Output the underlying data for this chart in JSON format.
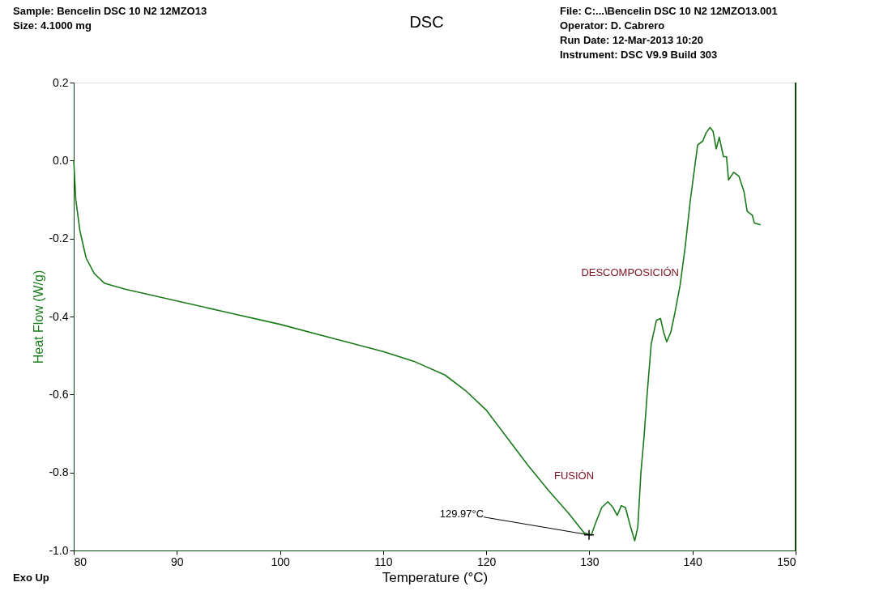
{
  "chart_data": {
    "type": "line",
    "title": "DSC",
    "xlabel": "Temperature (°C)",
    "ylabel": "Heat Flow (W/g)",
    "xlim": [
      80,
      150
    ],
    "xticks": [
      80,
      90,
      100,
      110,
      120,
      130,
      140,
      150
    ],
    "ylim": [
      -1.0,
      0.2
    ],
    "yticks": [
      {
        "value": -1.0,
        "label": "-1.0"
      },
      {
        "value": -0.8,
        "label": "-0.8"
      },
      {
        "value": -0.6,
        "label": "-0.6"
      },
      {
        "value": -0.4,
        "label": "-0.4"
      },
      {
        "value": -0.2,
        "label": "-0.2"
      },
      {
        "value": 0.0,
        "label": "0.0"
      },
      {
        "value": 0.2,
        "label": "0.2"
      }
    ],
    "grid": false,
    "marker": "none",
    "line_style": "solid",
    "annotations": [
      "Sample: Bencelin DSC 10 N2 12MZO13",
      "Size: 4.1000 mg",
      "File: C:...\\Bencelin DSC 10 N2 12MZO13.001",
      "Operator: D. Cabrero",
      "Run Date: 12-Mar-2013 10:20",
      "Instrument: DSC V9.9 Build 303",
      "Exo Up",
      "DESCOMPOSICIÓN",
      "FUSIÓN",
      {
        "text": "129.97°C",
        "x": 129.97,
        "y": -0.96
      }
    ],
    "series": [
      {
        "color": "#1a7a1a",
        "x": [
          80.0,
          80.2,
          80.6,
          81.2,
          82,
          83,
          85,
          90,
          95,
          100,
          105,
          110,
          113,
          116,
          118,
          120,
          122,
          124,
          126,
          128,
          129.5,
          130.2,
          130.6,
          131.2,
          131.8,
          132.3,
          132.7,
          133.1,
          133.5,
          134,
          134.4,
          134.7,
          135.0,
          135.3,
          135.6,
          136,
          136.5,
          136.9,
          137.2,
          137.5,
          137.9,
          138.3,
          138.8,
          139.3,
          139.8,
          140.2,
          140.5,
          141,
          141.3,
          141.7,
          142.0,
          142.3,
          142.6,
          143,
          143.3,
          143.5,
          144,
          144.5,
          145,
          145.3,
          145.8,
          146,
          146.6
        ],
        "values": [
          0.0,
          -0.1,
          -0.18,
          -0.25,
          -0.29,
          -0.315,
          -0.33,
          -0.36,
          -0.39,
          -0.42,
          -0.455,
          -0.49,
          -0.515,
          -0.55,
          -0.59,
          -0.64,
          -0.71,
          -0.78,
          -0.845,
          -0.905,
          -0.955,
          -0.96,
          -0.93,
          -0.89,
          -0.875,
          -0.89,
          -0.91,
          -0.885,
          -0.89,
          -0.94,
          -0.975,
          -0.94,
          -0.8,
          -0.71,
          -0.6,
          -0.47,
          -0.41,
          -0.405,
          -0.44,
          -0.465,
          -0.44,
          -0.39,
          -0.32,
          -0.22,
          -0.1,
          -0.02,
          0.04,
          0.05,
          0.07,
          0.085,
          0.075,
          0.03,
          0.06,
          0.01,
          0.01,
          -0.05,
          -0.03,
          -0.04,
          -0.08,
          -0.13,
          -0.14,
          -0.16,
          -0.165
        ]
      }
    ]
  }
}
